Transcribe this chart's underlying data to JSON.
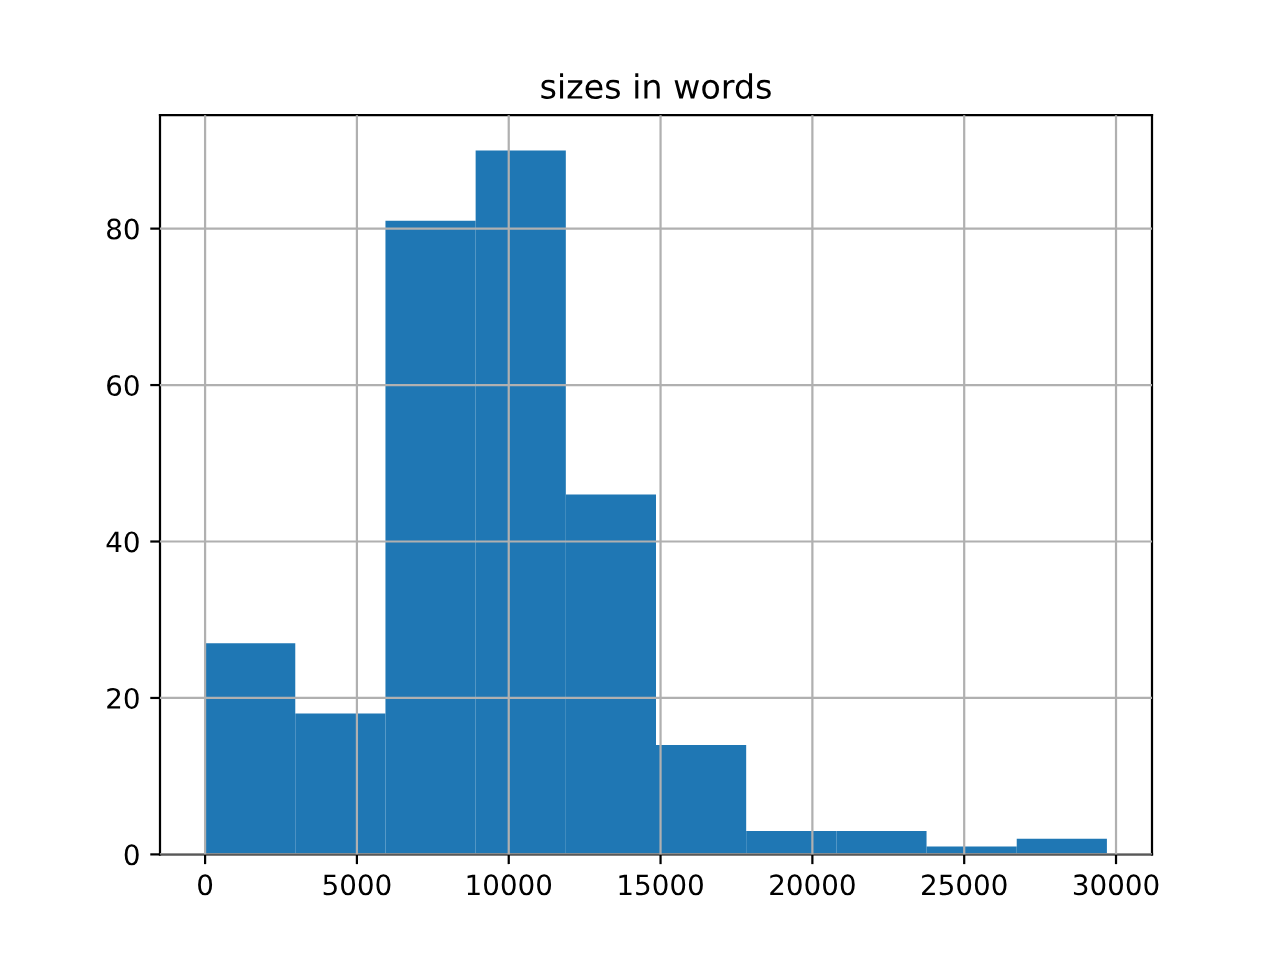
{
  "chart_data": {
    "type": "histogram",
    "title": "sizes in words",
    "bins": [
      0,
      2970,
      5940,
      8910,
      11880,
      14850,
      17820,
      20790,
      23760,
      26730,
      29700
    ],
    "values": [
      27,
      18,
      81,
      90,
      46,
      14,
      3,
      3,
      1,
      2
    ],
    "color": "#1f77b4",
    "xlim": [
      -1485,
      31185
    ],
    "xticks": [
      0,
      5000,
      10000,
      15000,
      20000,
      25000,
      30000
    ],
    "ylim": [
      0,
      94.5
    ],
    "yticks": [
      0,
      20,
      40,
      60,
      80
    ],
    "grid": true
  }
}
